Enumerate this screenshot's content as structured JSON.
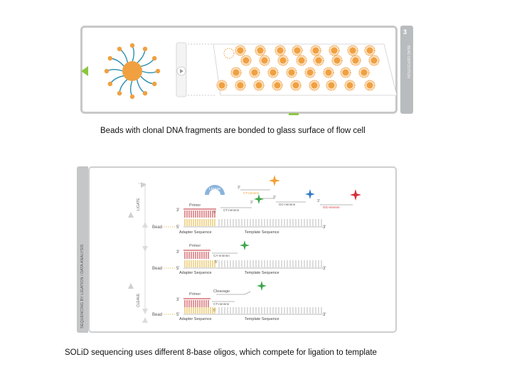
{
  "top_panel": {
    "caption": "Beads with clonal DNA fragments are bonded to glass surface of flow cell",
    "side_tab_number": "3",
    "side_tab_label": "BEAD DEPOSITION",
    "colors": {
      "bead": "#f0a040",
      "strand": "#2a8fb0",
      "accent_green": "#8cc63f",
      "frame": "#c8c8c8"
    }
  },
  "bottom_panel": {
    "caption": "SOLiD sequencing uses different 8-base oligos, which compete for ligation to template",
    "side_label": "SEQUENCING BY LIGATION / DATA ANALYSIS",
    "step_ligate": "LIGATE",
    "step_cleave": "CLEAVE",
    "ligase_label": "Ligase",
    "primer_label": "Primer",
    "bead_label": "Bead",
    "adapter_label": "Adapter Sequence",
    "template_label": "Template Sequence",
    "cleavage_label": "Cleavage",
    "three_prime": "3'",
    "five_prime": "5'",
    "oligo_labels": [
      "CT-nnnnnn",
      "CT-nnnnnn",
      "CA-nnnnnn",
      "GC-nnnnnn",
      "GG-nnnnnn"
    ],
    "colors": {
      "orange": "#f4a032",
      "green": "#3aa64a",
      "blue": "#2f78c4",
      "red": "#d62f3a",
      "primer": "#c0282f",
      "ligase": "#8ab4dc"
    }
  }
}
